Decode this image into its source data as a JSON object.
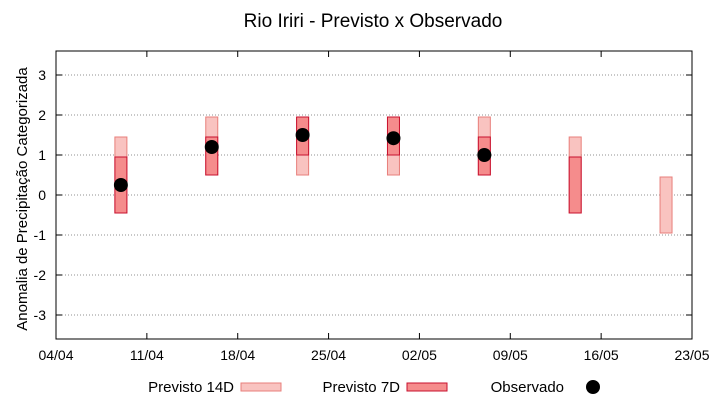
{
  "chart_data": {
    "type": "range-bar",
    "title": "Rio Iriri - Previsto x Observado",
    "xlabel": "",
    "ylabel": "Anomalia de Precipitação Categorizada",
    "ylim": [
      -3.6,
      3.6
    ],
    "yticks": [
      3,
      2,
      1,
      0,
      -1,
      -2,
      -3
    ],
    "ytick_labels": [
      "3",
      "2",
      "1",
      "0",
      "-1",
      "-2",
      "-3"
    ],
    "xlim_days": [
      0,
      49
    ],
    "xticks": [
      {
        "day": 0,
        "label": "04/04"
      },
      {
        "day": 7,
        "label": "11/04"
      },
      {
        "day": 14,
        "label": "18/04"
      },
      {
        "day": 21,
        "label": "25/04"
      },
      {
        "day": 28,
        "label": "02/05"
      },
      {
        "day": 35,
        "label": "09/05"
      },
      {
        "day": 42,
        "label": "16/05"
      },
      {
        "day": 49,
        "label": "23/05"
      }
    ],
    "grid": true,
    "legend_position": "bottom",
    "series": [
      {
        "name": "Previsto 14D",
        "kind": "range",
        "color": "#f9c3c0",
        "edge": "#e87f7b",
        "points": [
          {
            "day": 5,
            "low": -0.45,
            "high": 1.45
          },
          {
            "day": 12,
            "low": 0.5,
            "high": 1.95
          },
          {
            "day": 19,
            "low": 0.5,
            "high": 1.95
          },
          {
            "day": 26,
            "low": 0.5,
            "high": 1.95
          },
          {
            "day": 33,
            "low": 0.5,
            "high": 1.95
          },
          {
            "day": 40,
            "low": -0.45,
            "high": 1.45
          },
          {
            "day": 47,
            "low": -0.95,
            "high": 0.45
          }
        ]
      },
      {
        "name": "Previsto 7D",
        "kind": "range",
        "color": "#f58c8c",
        "edge": "#c8102e",
        "points": [
          {
            "day": 5,
            "low": -0.45,
            "high": 0.95
          },
          {
            "day": 12,
            "low": 0.5,
            "high": 1.45
          },
          {
            "day": 19,
            "low": 1.0,
            "high": 1.95
          },
          {
            "day": 26,
            "low": 1.0,
            "high": 1.95
          },
          {
            "day": 33,
            "low": 0.5,
            "high": 1.45
          },
          {
            "day": 40,
            "low": -0.45,
            "high": 0.95
          }
        ]
      },
      {
        "name": "Observado",
        "kind": "point",
        "color": "#000000",
        "points": [
          {
            "day": 5,
            "value": 0.25
          },
          {
            "day": 12,
            "value": 1.2
          },
          {
            "day": 19,
            "value": 1.5
          },
          {
            "day": 26,
            "value": 1.42
          },
          {
            "day": 33,
            "value": 1.0
          }
        ]
      }
    ]
  }
}
